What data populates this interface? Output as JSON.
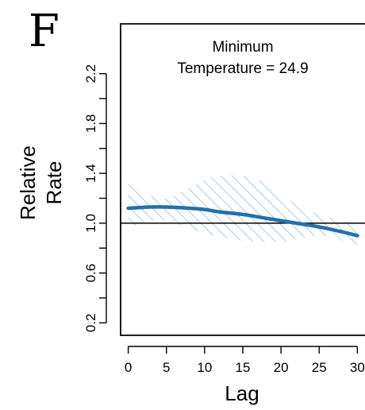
{
  "chart_data": {
    "type": "line",
    "panel_label": "F",
    "annotation": [
      "Minimum",
      "Temperature = 24.9"
    ],
    "xlabel": "Lag",
    "ylabel": [
      "Relative",
      "Rate"
    ],
    "xlim": [
      -1,
      31
    ],
    "ylim": [
      0.1,
      2.6
    ],
    "x_ticks": [
      0,
      5,
      10,
      15,
      20,
      25,
      30
    ],
    "y_ticks": [
      0.2,
      0.6,
      1.0,
      1.4,
      1.8,
      2.2
    ],
    "reference_line": 1.0,
    "grid": false,
    "series": [
      {
        "color": "#2370ad",
        "x": [
          0,
          3,
          5,
          8,
          10,
          12,
          15,
          18,
          20,
          22,
          25,
          28,
          30
        ],
        "y": [
          1.12,
          1.13,
          1.13,
          1.12,
          1.11,
          1.09,
          1.07,
          1.04,
          1.02,
          1.0,
          0.97,
          0.93,
          0.9
        ],
        "ci_lower": [
          0.96,
          1.02,
          1.02,
          0.96,
          0.92,
          0.89,
          0.86,
          0.85,
          0.85,
          0.87,
          0.9,
          0.86,
          0.82
        ],
        "ci_upper": [
          1.34,
          1.22,
          1.2,
          1.28,
          1.35,
          1.38,
          1.38,
          1.32,
          1.24,
          1.15,
          1.07,
          1.02,
          0.99
        ],
        "ci_style": "hatched",
        "ci_color": "#8ec1dc"
      }
    ]
  }
}
